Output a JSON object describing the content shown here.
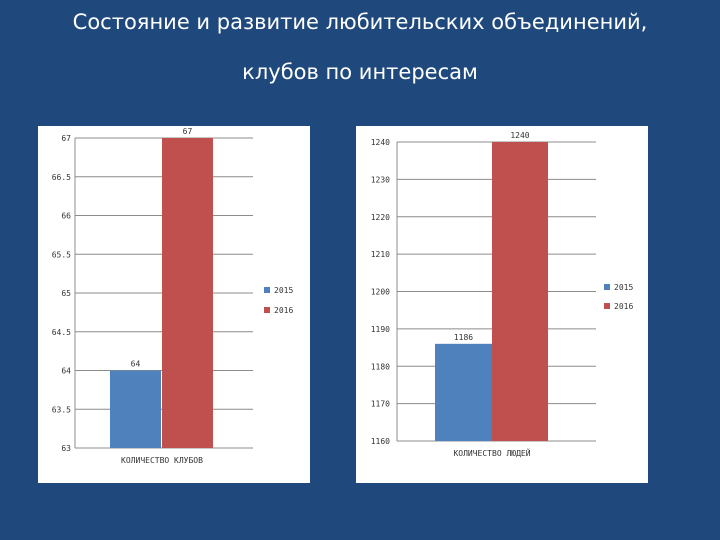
{
  "slide": {
    "title_line1": "Состояние и развитие любительских объединений,",
    "title_line2": "клубов по интересам"
  },
  "chart_data": [
    {
      "type": "bar",
      "categories": [
        "КОЛИЧЕСТВО КЛУБОВ"
      ],
      "series": [
        {
          "name": "2015",
          "values": [
            64
          ],
          "color": "#4f81bd"
        },
        {
          "name": "2016",
          "values": [
            67
          ],
          "color": "#c0504d"
        }
      ],
      "ylim": [
        63,
        67
      ],
      "yticks": [
        "63",
        "63.5",
        "64",
        "64.5",
        "65",
        "65.5",
        "66",
        "66.5",
        "67"
      ],
      "data_labels": [
        "64",
        "67"
      ],
      "legend": "right",
      "grid": true
    },
    {
      "type": "bar",
      "categories": [
        "КОЛИЧЕСТВО ЛЮДЕЙ"
      ],
      "series": [
        {
          "name": "2015",
          "values": [
            1186
          ],
          "color": "#4f81bd"
        },
        {
          "name": "2016",
          "values": [
            1240
          ],
          "color": "#c0504d"
        }
      ],
      "ylim": [
        1160,
        1240
      ],
      "yticks": [
        "1160",
        "1170",
        "1180",
        "1190",
        "1200",
        "1210",
        "1220",
        "1230",
        "1240"
      ],
      "data_labels": [
        "1186",
        "1240"
      ],
      "legend": "right",
      "grid": true
    }
  ]
}
